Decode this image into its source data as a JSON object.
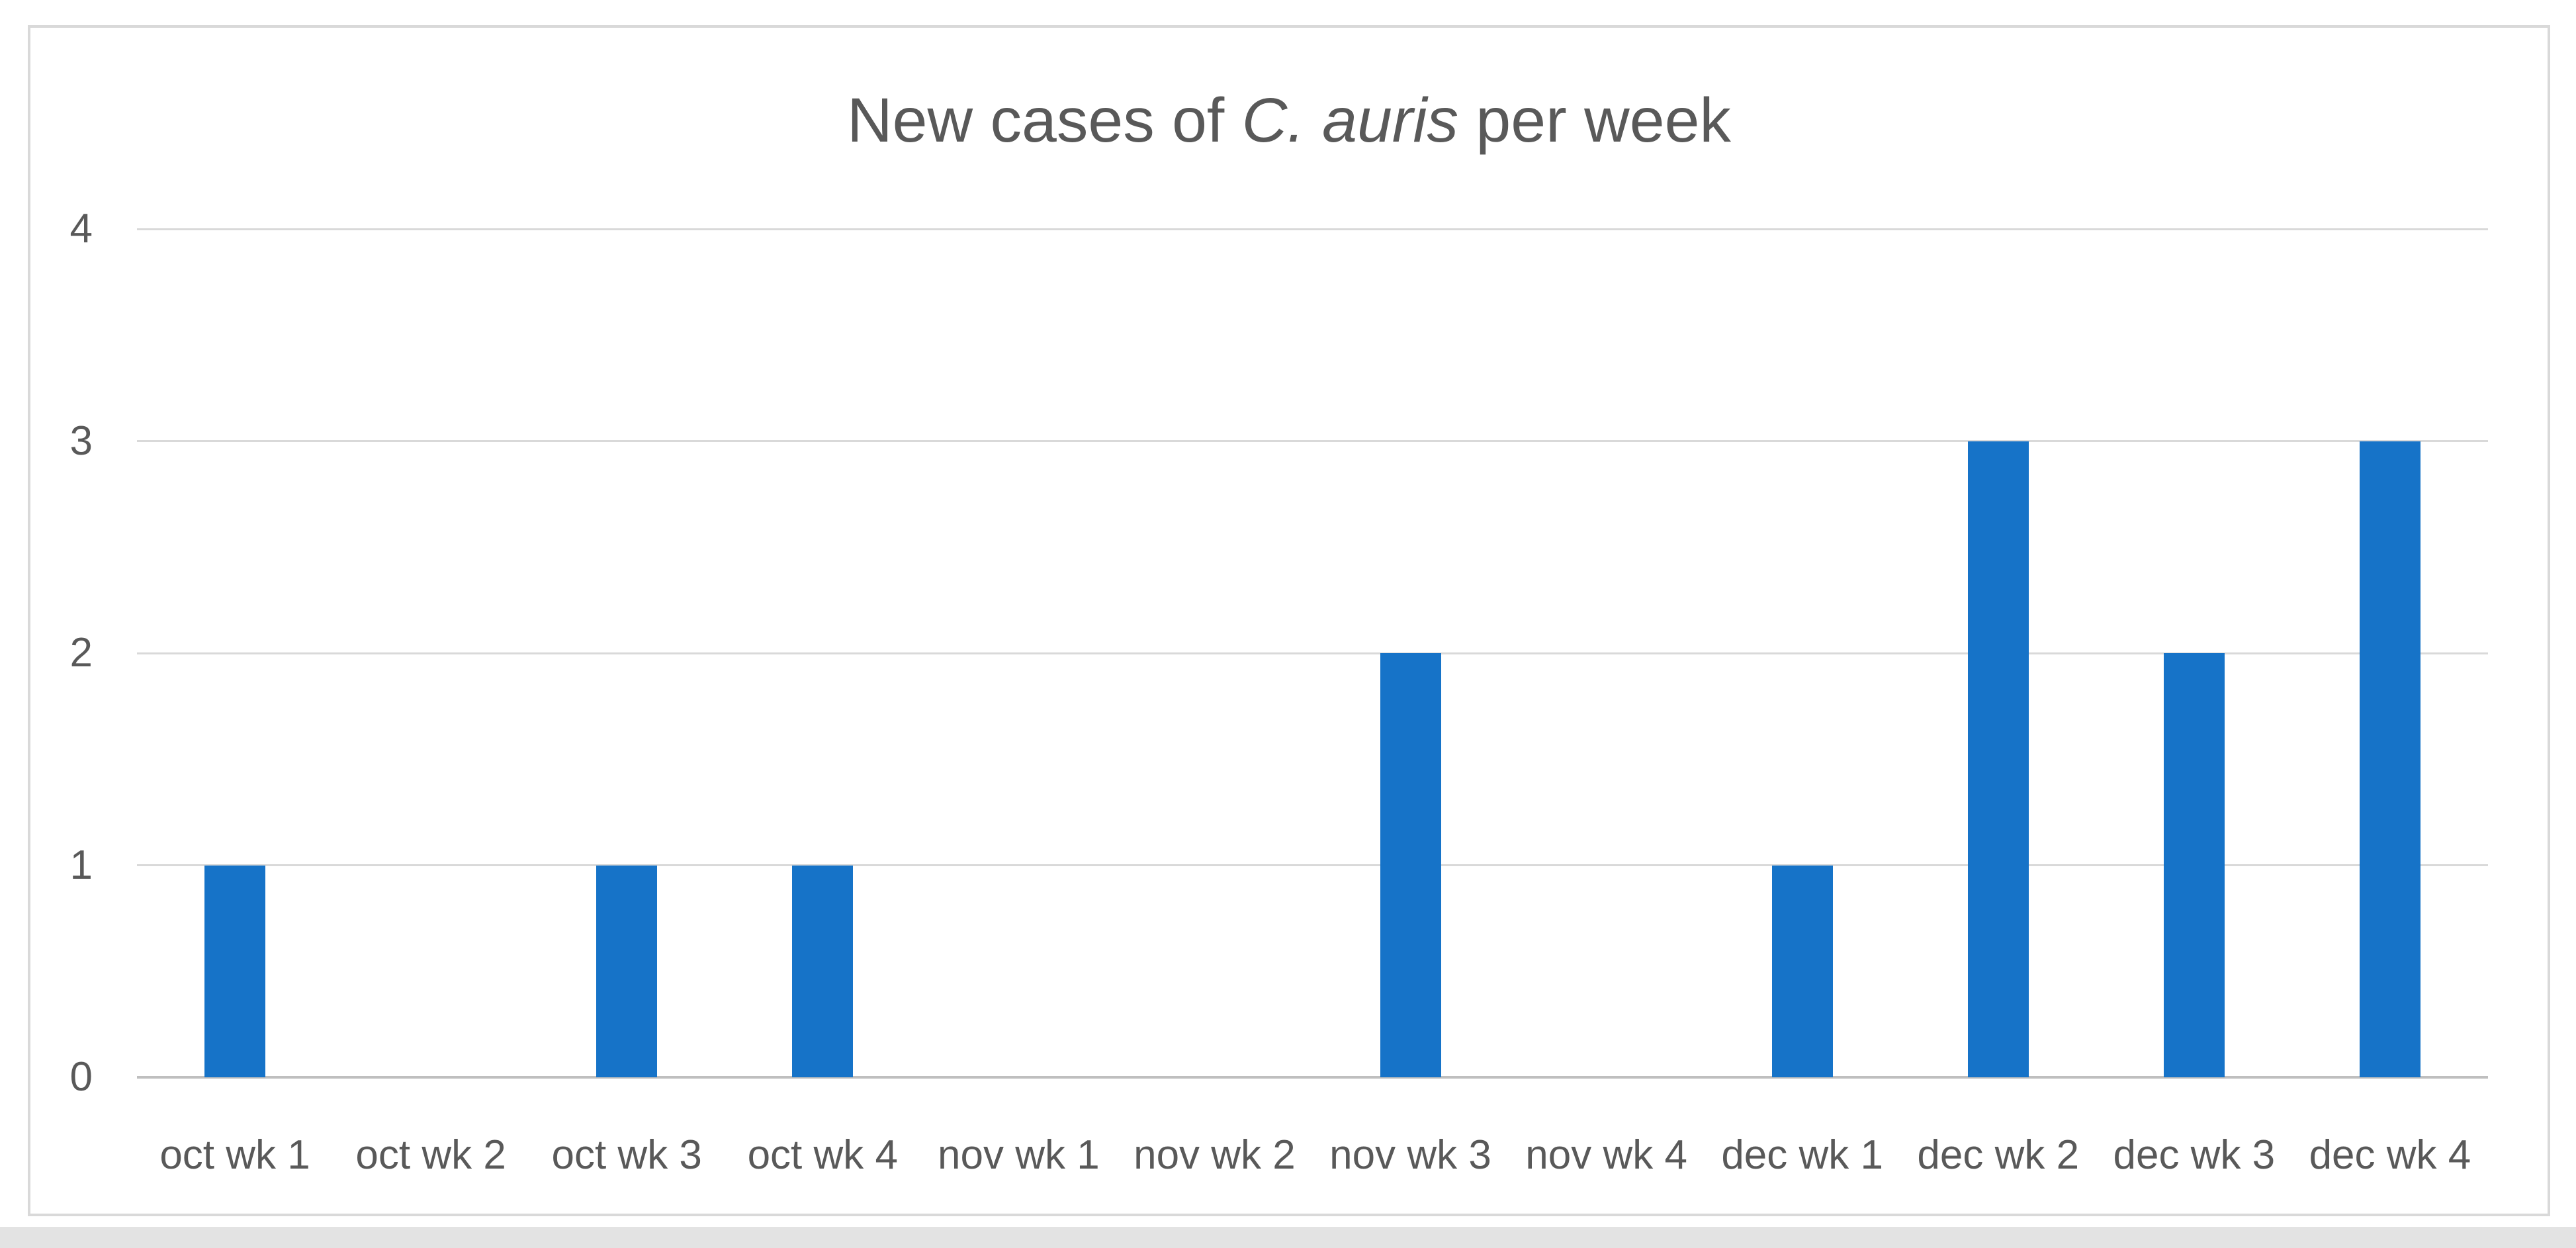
{
  "chart_data": {
    "type": "bar",
    "title": "New cases of C. auris per week",
    "title_prefix": "New cases of ",
    "title_italic": "C. auris",
    "title_suffix": " per week",
    "categories": [
      "oct wk 1",
      "oct wk 2",
      "oct wk 3",
      "oct wk 4",
      "nov wk 1",
      "nov wk 2",
      "nov wk 3",
      "nov wk 4",
      "dec wk 1",
      "dec wk 2",
      "dec wk 3",
      "dec wk 4"
    ],
    "values": [
      1,
      0,
      1,
      1,
      0,
      0,
      2,
      0,
      1,
      3,
      2,
      3
    ],
    "xlabel": "",
    "ylabel": "",
    "ylim": [
      0,
      4
    ],
    "yticks": [
      0,
      1,
      2,
      3,
      4
    ],
    "grid": "horizontal",
    "legend": "none",
    "colors": {
      "bar": "#1673C8",
      "gridline": "#D9D9D9",
      "axis_line": "#BFBFBF",
      "text": "#595959",
      "panel_border": "#D9D9D9",
      "background": "#FFFFFF",
      "page_edge_strip": "#E3E3E3"
    }
  }
}
